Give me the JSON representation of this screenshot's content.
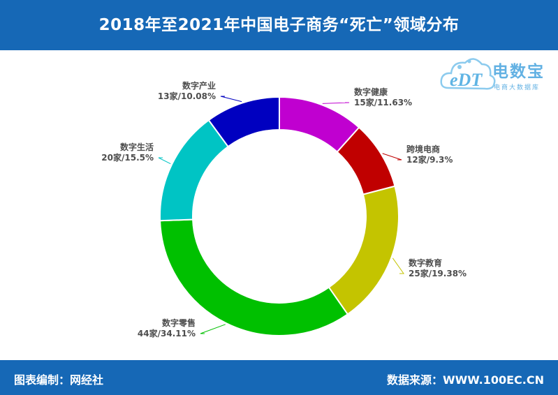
{
  "header": {
    "title": "2018年至2021年中国电子商务“死亡”领域分布"
  },
  "footer": {
    "left": "图表编制：网经社",
    "right": "数据来源：WWW.100EC.CN"
  },
  "logo": {
    "name": "电数宝",
    "sub": "电商大数据库",
    "mark": "eDT",
    "color": "#62b1e3"
  },
  "chart_data": {
    "type": "pie",
    "variant": "donut",
    "start": "top",
    "direction": "clockwise",
    "slices": [
      {
        "name": "数字健康",
        "value": 15,
        "value_label": "15家/11.63%",
        "color": "#c000d0"
      },
      {
        "name": "跨境电商",
        "value": 12,
        "value_label": "12家/9.3%",
        "color": "#c00000"
      },
      {
        "name": "数字教育",
        "value": 25,
        "value_label": "25家/19.38%",
        "color": "#c4c400"
      },
      {
        "name": "数字零售",
        "value": 44,
        "value_label": "44家/34.11%",
        "color": "#00c000"
      },
      {
        "name": "数字生活",
        "value": 20,
        "value_label": "20家/15.5%",
        "color": "#00c4c4"
      },
      {
        "name": "数字产业",
        "value": 13,
        "value_label": "13家/10.08%",
        "color": "#0000c0"
      }
    ]
  }
}
